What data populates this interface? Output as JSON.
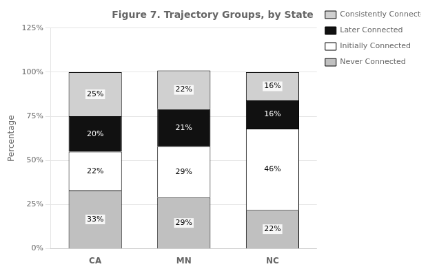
{
  "chart_data": {
    "type": "bar",
    "title": "Figure 7. Trajectory Groups, by State",
    "categories": [
      "CA",
      "MN",
      "NC"
    ],
    "stacked": true,
    "series": [
      {
        "name": "Never Connected",
        "color": "#c0c0c0",
        "values": [
          33,
          29,
          22
        ],
        "value_labels": [
          "33%",
          "29%",
          "22%"
        ]
      },
      {
        "name": "Initially Connected",
        "color": "#ffffff",
        "values": [
          22,
          29,
          46
        ],
        "value_labels": [
          "22%",
          "29%",
          "46%"
        ]
      },
      {
        "name": "Later Connected",
        "color": "#111111",
        "values": [
          20,
          21,
          16
        ],
        "value_labels": [
          "20%",
          "21%",
          "16%"
        ]
      },
      {
        "name": "Consistently Connected",
        "color": "#d0d0d0",
        "values": [
          25,
          22,
          16
        ],
        "value_labels": [
          "25%",
          "22%",
          "16%"
        ]
      }
    ],
    "ylabel": "Percentage",
    "ylim": [
      0,
      125
    ],
    "yticks": [
      {
        "value": 0,
        "label": "0%"
      },
      {
        "value": 25,
        "label": "25%"
      },
      {
        "value": 50,
        "label": "50%"
      },
      {
        "value": 75,
        "label": "75%"
      },
      {
        "value": 100,
        "label": "100%"
      },
      {
        "value": 125,
        "label": "125%"
      }
    ],
    "grid": true,
    "legend": "right",
    "data_labels": true
  }
}
